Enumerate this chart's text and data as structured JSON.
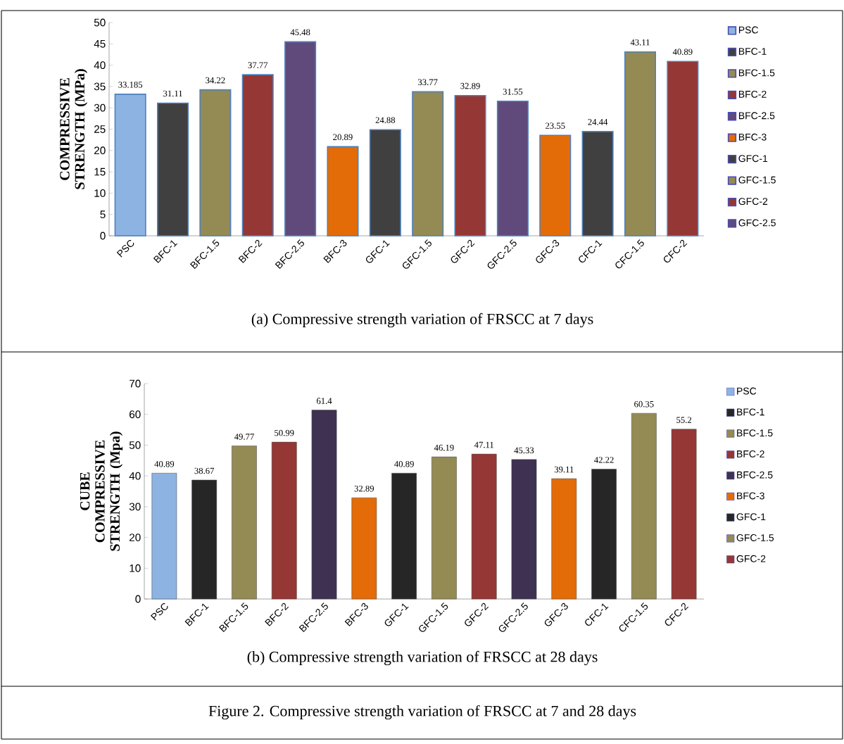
{
  "chart_data": [
    {
      "type": "bar",
      "ylabel": "COMPRESSIVE STRENGTH (MPa)",
      "categories": [
        "PSC",
        "BFC-1",
        "BFC-1.5",
        "BFC-2",
        "BFC-2.5",
        "BFC-3",
        "GFC-1",
        "GFC-1.5",
        "GFC-2",
        "GFC-2.5",
        "GFC-3",
        "CFC-1",
        "CFC-1.5",
        "CFC-2"
      ],
      "series": [
        {
          "name": "PSC",
          "color": "#8db3e2",
          "values": [
            33.185,
            null,
            null,
            null,
            null,
            null,
            null,
            null,
            null,
            null,
            null,
            null,
            null,
            null
          ]
        },
        {
          "name": "BFC-1",
          "color": "#404040",
          "values": [
            null,
            31.11,
            null,
            null,
            null,
            null,
            null,
            null,
            null,
            null,
            null,
            null,
            null,
            null
          ]
        },
        {
          "name": "BFC-1.5",
          "color": "#948a54",
          "values": [
            null,
            null,
            34.22,
            null,
            null,
            null,
            null,
            null,
            null,
            null,
            null,
            null,
            null,
            null
          ]
        },
        {
          "name": "BFC-2",
          "color": "#953735",
          "values": [
            null,
            null,
            null,
            37.77,
            null,
            null,
            null,
            null,
            null,
            null,
            null,
            null,
            null,
            null
          ]
        },
        {
          "name": "BFC-2.5",
          "color": "#604a7b",
          "values": [
            null,
            null,
            null,
            null,
            45.48,
            null,
            null,
            null,
            null,
            null,
            null,
            null,
            null,
            null
          ]
        },
        {
          "name": "BFC-3",
          "color": "#e36c09",
          "values": [
            null,
            null,
            null,
            null,
            null,
            20.89,
            null,
            null,
            null,
            null,
            null,
            null,
            null,
            null
          ]
        },
        {
          "name": "GFC-1",
          "color": "#404040",
          "values": [
            null,
            null,
            null,
            null,
            null,
            null,
            24.88,
            null,
            null,
            null,
            null,
            null,
            null,
            null
          ]
        },
        {
          "name": "GFC-1.5",
          "color": "#948a54",
          "values": [
            null,
            null,
            null,
            null,
            null,
            null,
            null,
            33.77,
            null,
            null,
            null,
            null,
            null,
            null
          ]
        },
        {
          "name": "GFC-2",
          "color": "#953735",
          "values": [
            null,
            null,
            null,
            null,
            null,
            null,
            null,
            null,
            32.89,
            null,
            null,
            null,
            null,
            null
          ]
        },
        {
          "name": "GFC-2.5",
          "color": "#604a7b",
          "values": [
            null,
            null,
            null,
            null,
            null,
            null,
            null,
            null,
            null,
            31.55,
            null,
            null,
            null,
            null
          ]
        },
        {
          "color": "#e36c09",
          "values": [
            null,
            null,
            null,
            null,
            null,
            null,
            null,
            null,
            null,
            null,
            23.55,
            null,
            null,
            null
          ]
        },
        {
          "color": "#404040",
          "values": [
            null,
            null,
            null,
            null,
            null,
            null,
            null,
            null,
            null,
            null,
            null,
            24.44,
            null,
            null
          ]
        },
        {
          "color": "#948a54",
          "values": [
            null,
            null,
            null,
            null,
            null,
            null,
            null,
            null,
            null,
            null,
            null,
            null,
            43.11,
            null
          ]
        },
        {
          "color": "#953735",
          "values": [
            null,
            null,
            null,
            null,
            null,
            null,
            null,
            null,
            null,
            null,
            null,
            null,
            null,
            40.89
          ]
        }
      ],
      "ylim": [
        0,
        50
      ],
      "yticks": [
        0,
        5,
        10,
        15,
        20,
        25,
        30,
        35,
        40,
        45,
        50
      ],
      "data_labels": true,
      "legend": "right",
      "annotations": [
        "(a) Compressive strength variation of FRSCC at 7 days"
      ]
    },
    {
      "type": "bar",
      "ylabel": "CUBE COMPRESSIVE STRENGTH (Mpa)",
      "categories": [
        "PSC",
        "BFC-1",
        "BFC-1.5",
        "BFC-2",
        "BFC-2.5",
        "BFC-3",
        "GFC-1",
        "GFC-1.5",
        "GFC-2",
        "GFC-2.5",
        "GFC-3",
        "CFC-1",
        "CFC-1.5",
        "CFC-2"
      ],
      "series": [
        {
          "name": "PSC",
          "color": "#8db3e2",
          "values": [
            40.89,
            null,
            null,
            null,
            null,
            null,
            null,
            null,
            null,
            null,
            null,
            null,
            null,
            null
          ]
        },
        {
          "name": "BFC-1",
          "color": "#262626",
          "values": [
            null,
            38.67,
            null,
            null,
            null,
            null,
            null,
            null,
            null,
            null,
            null,
            null,
            null,
            null
          ]
        },
        {
          "name": "BFC-1.5",
          "color": "#948a54",
          "values": [
            null,
            null,
            49.77,
            null,
            null,
            null,
            null,
            null,
            null,
            null,
            null,
            null,
            null,
            null
          ]
        },
        {
          "name": "BFC-2",
          "color": "#953735",
          "values": [
            null,
            null,
            null,
            50.99,
            null,
            null,
            null,
            null,
            null,
            null,
            null,
            null,
            null,
            null
          ]
        },
        {
          "name": "BFC-2.5",
          "color": "#3f3151",
          "values": [
            null,
            null,
            null,
            null,
            61.4,
            null,
            null,
            null,
            null,
            null,
            null,
            null,
            null,
            null
          ]
        },
        {
          "name": "BFC-3",
          "color": "#e36c09",
          "values": [
            null,
            null,
            null,
            null,
            null,
            32.89,
            null,
            null,
            null,
            null,
            null,
            null,
            null,
            null
          ]
        },
        {
          "name": "GFC-1",
          "color": "#262626",
          "values": [
            null,
            null,
            null,
            null,
            null,
            null,
            40.89,
            null,
            null,
            null,
            null,
            null,
            null,
            null
          ]
        },
        {
          "name": "GFC-1.5",
          "color": "#948a54",
          "values": [
            null,
            null,
            null,
            null,
            null,
            null,
            null,
            46.19,
            null,
            null,
            null,
            null,
            null,
            null
          ]
        },
        {
          "name": "GFC-2",
          "color": "#953735",
          "values": [
            null,
            null,
            null,
            null,
            null,
            null,
            null,
            null,
            47.11,
            null,
            null,
            null,
            null,
            null
          ]
        },
        {
          "color": "#3f3151",
          "values": [
            null,
            null,
            null,
            null,
            null,
            null,
            null,
            null,
            null,
            45.33,
            null,
            null,
            null,
            null
          ]
        },
        {
          "color": "#e36c09",
          "values": [
            null,
            null,
            null,
            null,
            null,
            null,
            null,
            null,
            null,
            null,
            39.11,
            null,
            null,
            null
          ]
        },
        {
          "color": "#262626",
          "values": [
            null,
            null,
            null,
            null,
            null,
            null,
            null,
            null,
            null,
            null,
            null,
            42.22,
            null,
            null
          ]
        },
        {
          "color": "#948a54",
          "values": [
            null,
            null,
            null,
            null,
            null,
            null,
            null,
            null,
            null,
            null,
            null,
            null,
            60.35,
            null
          ]
        },
        {
          "color": "#953735",
          "values": [
            null,
            null,
            null,
            null,
            null,
            null,
            null,
            null,
            null,
            null,
            null,
            null,
            null,
            55.2
          ]
        }
      ],
      "ylim": [
        0,
        70
      ],
      "yticks": [
        0,
        10,
        20,
        30,
        40,
        50,
        60,
        70
      ],
      "data_labels": true,
      "legend": "right",
      "annotations": [
        "(b) Compressive strength variation of FRSCC at 28 days",
        "Figure 2. Compressive strength variation of FRSCC at 7 and 28 days"
      ]
    }
  ]
}
